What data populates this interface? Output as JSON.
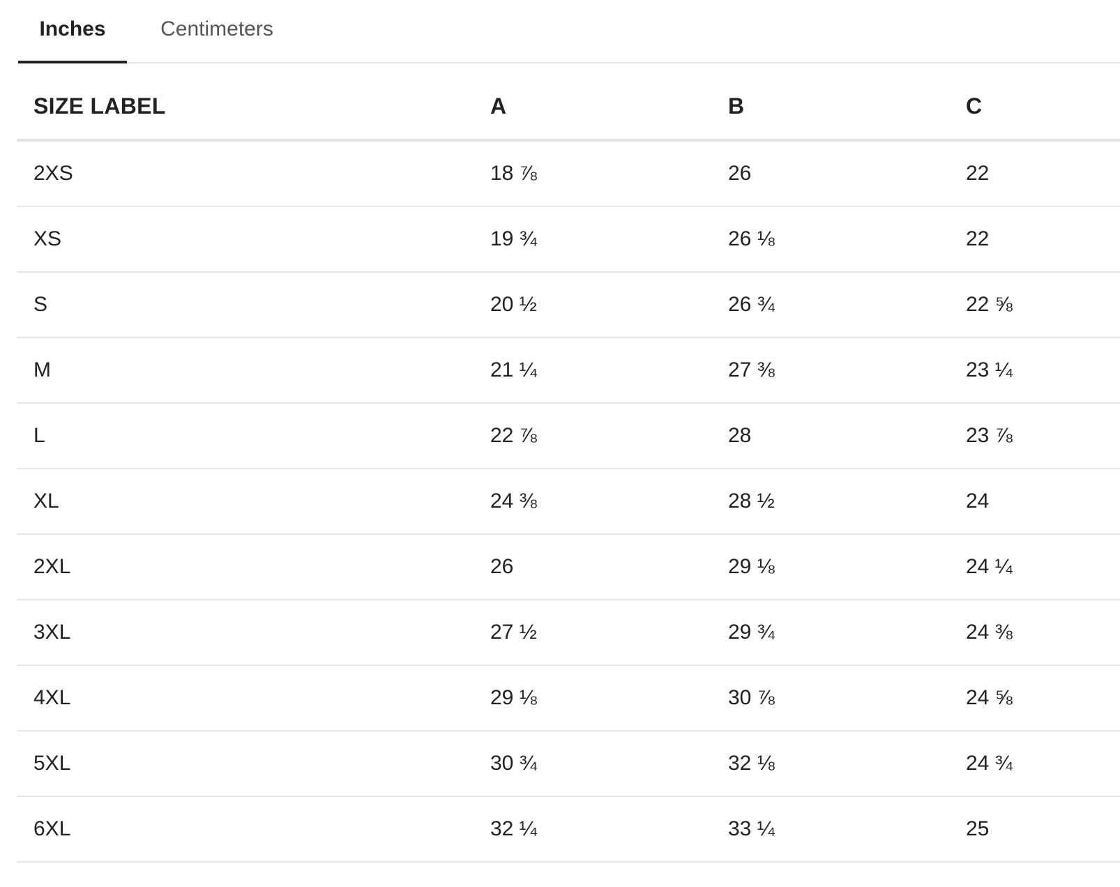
{
  "tabs": [
    {
      "label": "Inches",
      "active": true
    },
    {
      "label": "Centimeters",
      "active": false
    }
  ],
  "table": {
    "headers": [
      "SIZE LABEL",
      "A",
      "B",
      "C"
    ],
    "rows": [
      [
        "2XS",
        "18 ⅞",
        "26",
        "22"
      ],
      [
        "XS",
        "19 ¾",
        "26 ⅛",
        "22"
      ],
      [
        "S",
        "20 ½",
        "26 ¾",
        "22 ⅝"
      ],
      [
        "M",
        "21 ¼",
        "27 ⅜",
        "23 ¼"
      ],
      [
        "L",
        "22 ⅞",
        "28",
        "23 ⅞"
      ],
      [
        "XL",
        "24 ⅜",
        "28 ½",
        "24"
      ],
      [
        "2XL",
        "26",
        "29 ⅛",
        "24 ¼"
      ],
      [
        "3XL",
        "27 ½",
        "29 ¾",
        "24 ⅜"
      ],
      [
        "4XL",
        "29 ⅛",
        "30 ⅞",
        "24 ⅝"
      ],
      [
        "5XL",
        "30 ¾",
        "32 ⅛",
        "24 ¾"
      ],
      [
        "6XL",
        "32 ¼",
        "33 ¼",
        "25"
      ]
    ]
  },
  "colors": {
    "text": "#222222",
    "inactive_tab": "#555555",
    "divider": "#e6e6e6"
  }
}
